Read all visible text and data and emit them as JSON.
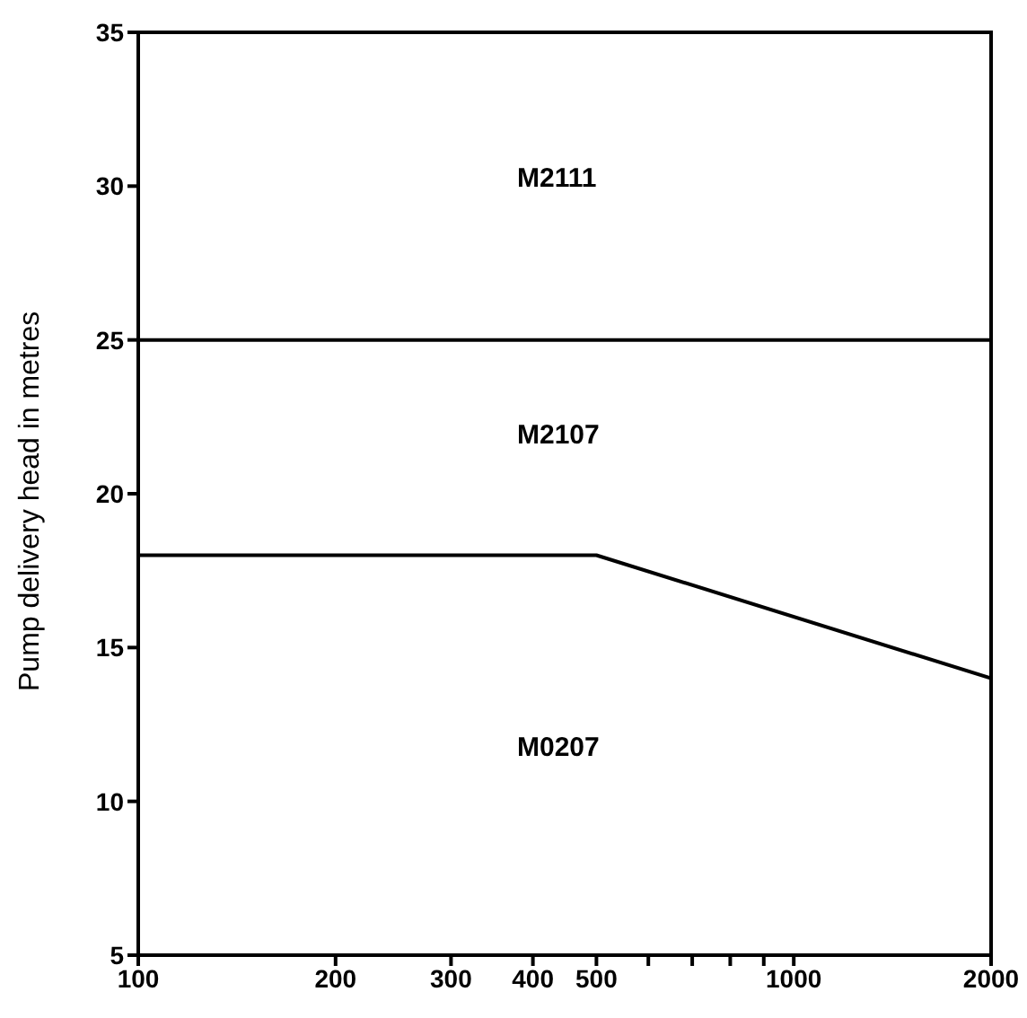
{
  "chart_data": {
    "type": "line",
    "ylabel": "Pump delivery head in metres",
    "log": "x",
    "marker": "none",
    "line_style": "solid",
    "xlim": [
      100,
      2000
    ],
    "xticks": [
      100,
      200,
      300,
      400,
      500,
      {
        "value": 600,
        "label": null
      },
      {
        "value": 700,
        "label": null
      },
      {
        "value": 800,
        "label": null
      },
      {
        "value": 900,
        "label": null
      },
      1000,
      2000
    ],
    "ylim": [
      5,
      35
    ],
    "yticks": [
      5,
      10,
      15,
      20,
      25,
      30,
      35
    ],
    "series": [
      {
        "color": "#000000",
        "x": [
          100,
          2000
        ],
        "values": [
          25,
          25
        ]
      },
      {
        "color": "#000000",
        "x": [
          100,
          500,
          2000
        ],
        "values": [
          18,
          18,
          14
        ]
      }
    ],
    "annotations": [
      "M2111",
      "M2107",
      "M0207"
    ]
  }
}
